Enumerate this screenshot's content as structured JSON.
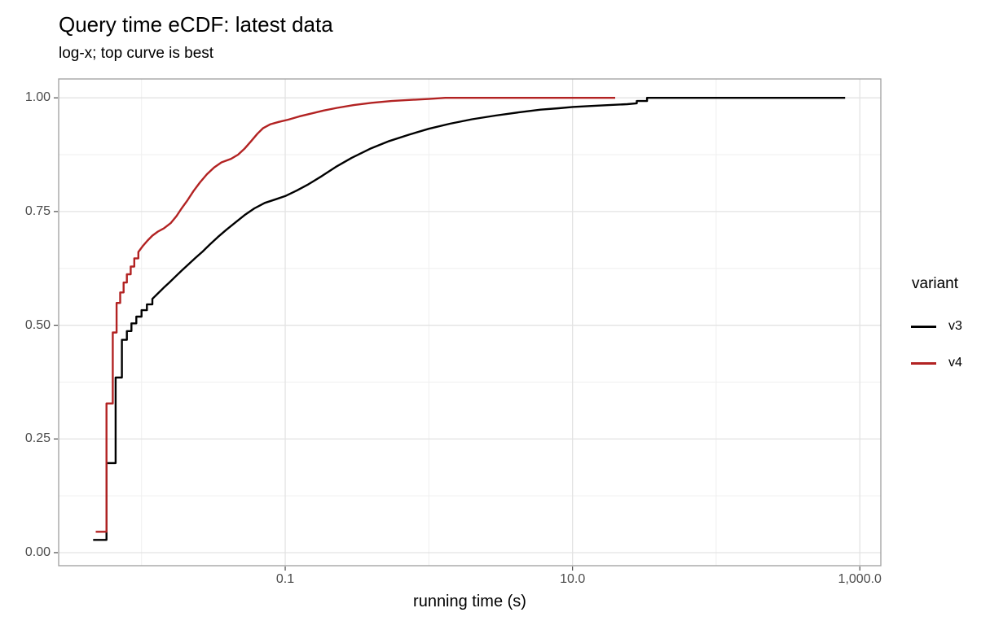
{
  "chart_data": {
    "type": "line",
    "title": "Query time eCDF: latest data",
    "subtitle": "log-x; top curve is best",
    "xlabel": "running time (s)",
    "ylabel": "",
    "x_scale": "log10",
    "grid": "on",
    "x_domain_log10": [
      -2.577,
      3.146
    ],
    "y_domain": [
      -0.0287,
      1.0415
    ],
    "x_ticks": [
      {
        "value": 0.1,
        "label": "0.1"
      },
      {
        "value": 10,
        "label": "10.0"
      },
      {
        "value": 1000,
        "label": "1,000.0"
      }
    ],
    "x_minor_gridlines": [
      0.01,
      1,
      100
    ],
    "y_ticks": [
      {
        "value": 0.0,
        "label": "0.00"
      },
      {
        "value": 0.25,
        "label": "0.25"
      },
      {
        "value": 0.5,
        "label": "0.50"
      },
      {
        "value": 0.75,
        "label": "0.75"
      },
      {
        "value": 1.0,
        "label": "1.00"
      }
    ],
    "y_minor_gridlines": [
      0.125,
      0.375,
      0.625,
      0.875
    ],
    "legend": {
      "title": "variant",
      "position": "right",
      "entries": [
        {
          "label": "v3",
          "color": "#000000"
        },
        {
          "label": "v4",
          "color": "#B22222"
        }
      ]
    },
    "style": {
      "grid_major": "#e3e3e3",
      "grid_minor": "#efefef",
      "panel_border": "#9e9e9e",
      "axis_text": "#4d4d4d",
      "curve_width": 2.4
    },
    "series": [
      {
        "name": "v3",
        "color": "#000000",
        "points": [
          [
            0.0046,
            0.028
          ],
          [
            0.0057,
            0.028
          ],
          [
            0.0057,
            0.197
          ],
          [
            0.0066,
            0.197
          ],
          [
            0.0066,
            0.385
          ],
          [
            0.0073,
            0.385
          ],
          [
            0.0073,
            0.468
          ],
          [
            0.0079,
            0.468
          ],
          [
            0.0079,
            0.487
          ],
          [
            0.0085,
            0.487
          ],
          [
            0.0085,
            0.504
          ],
          [
            0.0092,
            0.504
          ],
          [
            0.0092,
            0.519
          ],
          [
            0.01,
            0.519
          ],
          [
            0.01,
            0.533
          ],
          [
            0.0109,
            0.533
          ],
          [
            0.0109,
            0.546
          ],
          [
            0.0119,
            0.546
          ],
          [
            0.0119,
            0.558
          ],
          [
            0.013,
            0.57
          ],
          [
            0.0142,
            0.582
          ],
          [
            0.0156,
            0.594
          ],
          [
            0.0172,
            0.607
          ],
          [
            0.019,
            0.62
          ],
          [
            0.0212,
            0.634
          ],
          [
            0.0237,
            0.648
          ],
          [
            0.0266,
            0.662
          ],
          [
            0.03,
            0.678
          ],
          [
            0.034,
            0.694
          ],
          [
            0.039,
            0.71
          ],
          [
            0.045,
            0.726
          ],
          [
            0.052,
            0.742
          ],
          [
            0.061,
            0.757
          ],
          [
            0.072,
            0.769
          ],
          [
            0.086,
            0.777
          ],
          [
            0.1,
            0.784
          ],
          [
            0.12,
            0.796
          ],
          [
            0.145,
            0.81
          ],
          [
            0.18,
            0.828
          ],
          [
            0.225,
            0.848
          ],
          [
            0.29,
            0.868
          ],
          [
            0.39,
            0.888
          ],
          [
            0.53,
            0.905
          ],
          [
            0.73,
            0.919
          ],
          [
            1.0,
            0.932
          ],
          [
            1.4,
            0.943
          ],
          [
            2.0,
            0.953
          ],
          [
            2.9,
            0.961
          ],
          [
            4.2,
            0.968
          ],
          [
            6.0,
            0.974
          ],
          [
            8.0,
            0.977
          ],
          [
            10.0,
            0.98
          ],
          [
            13.5,
            0.982
          ],
          [
            18.0,
            0.984
          ],
          [
            24.0,
            0.986
          ],
          [
            28.0,
            0.988
          ],
          [
            28.0,
            0.993
          ],
          [
            33.0,
            0.993
          ],
          [
            33.0,
            1.0
          ],
          [
            790.0,
            1.0
          ]
        ]
      },
      {
        "name": "v4",
        "color": "#B22222",
        "points": [
          [
            0.0048,
            0.046
          ],
          [
            0.0057,
            0.046
          ],
          [
            0.0057,
            0.328
          ],
          [
            0.0063,
            0.328
          ],
          [
            0.0063,
            0.484
          ],
          [
            0.0067,
            0.484
          ],
          [
            0.0067,
            0.549
          ],
          [
            0.0071,
            0.549
          ],
          [
            0.0071,
            0.572
          ],
          [
            0.0075,
            0.572
          ],
          [
            0.0075,
            0.594
          ],
          [
            0.0079,
            0.594
          ],
          [
            0.0079,
            0.612
          ],
          [
            0.0084,
            0.612
          ],
          [
            0.0084,
            0.629
          ],
          [
            0.0089,
            0.629
          ],
          [
            0.0089,
            0.647
          ],
          [
            0.0095,
            0.647
          ],
          [
            0.0095,
            0.661
          ],
          [
            0.0102,
            0.674
          ],
          [
            0.011,
            0.686
          ],
          [
            0.0119,
            0.697
          ],
          [
            0.013,
            0.706
          ],
          [
            0.0143,
            0.713
          ],
          [
            0.016,
            0.725
          ],
          [
            0.0175,
            0.74
          ],
          [
            0.019,
            0.757
          ],
          [
            0.0209,
            0.775
          ],
          [
            0.023,
            0.795
          ],
          [
            0.0255,
            0.814
          ],
          [
            0.0285,
            0.832
          ],
          [
            0.032,
            0.847
          ],
          [
            0.036,
            0.858
          ],
          [
            0.042,
            0.866
          ],
          [
            0.047,
            0.875
          ],
          [
            0.052,
            0.888
          ],
          [
            0.058,
            0.905
          ],
          [
            0.064,
            0.921
          ],
          [
            0.07,
            0.933
          ],
          [
            0.079,
            0.942
          ],
          [
            0.09,
            0.947
          ],
          [
            0.105,
            0.952
          ],
          [
            0.125,
            0.959
          ],
          [
            0.15,
            0.965
          ],
          [
            0.185,
            0.972
          ],
          [
            0.23,
            0.978
          ],
          [
            0.3,
            0.984
          ],
          [
            0.4,
            0.989
          ],
          [
            0.55,
            0.993
          ],
          [
            0.75,
            0.9955
          ],
          [
            1.0,
            0.9975
          ],
          [
            1.3,
            1.0
          ],
          [
            19.8,
            1.0
          ]
        ]
      }
    ]
  }
}
